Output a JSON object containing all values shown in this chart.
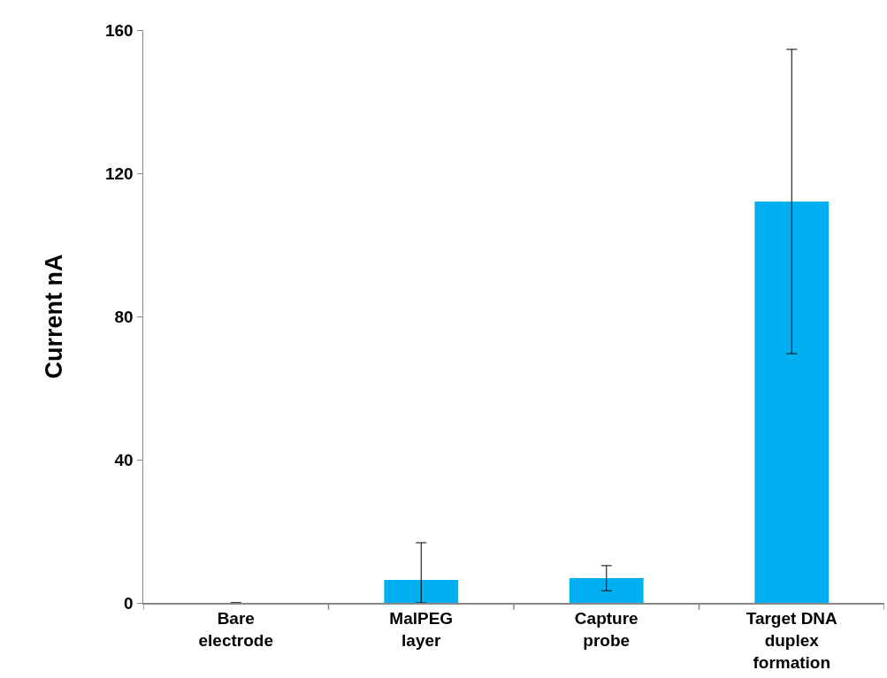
{
  "chart_data": {
    "type": "bar",
    "ylabel": "Current nA",
    "categories": [
      "Bare electrode",
      "MalPEG layer",
      "Capture probe",
      "Target DNA duplex formation"
    ],
    "values": [
      0,
      6.4,
      6.9,
      112.1
    ],
    "errors": [
      null,
      [
        0,
        16.8
      ],
      3.5,
      42.5
    ],
    "color": "#00b0f0",
    "ylim": [
      0,
      160
    ],
    "yticks": [
      0,
      40,
      80,
      120,
      160
    ],
    "grid": false
  }
}
